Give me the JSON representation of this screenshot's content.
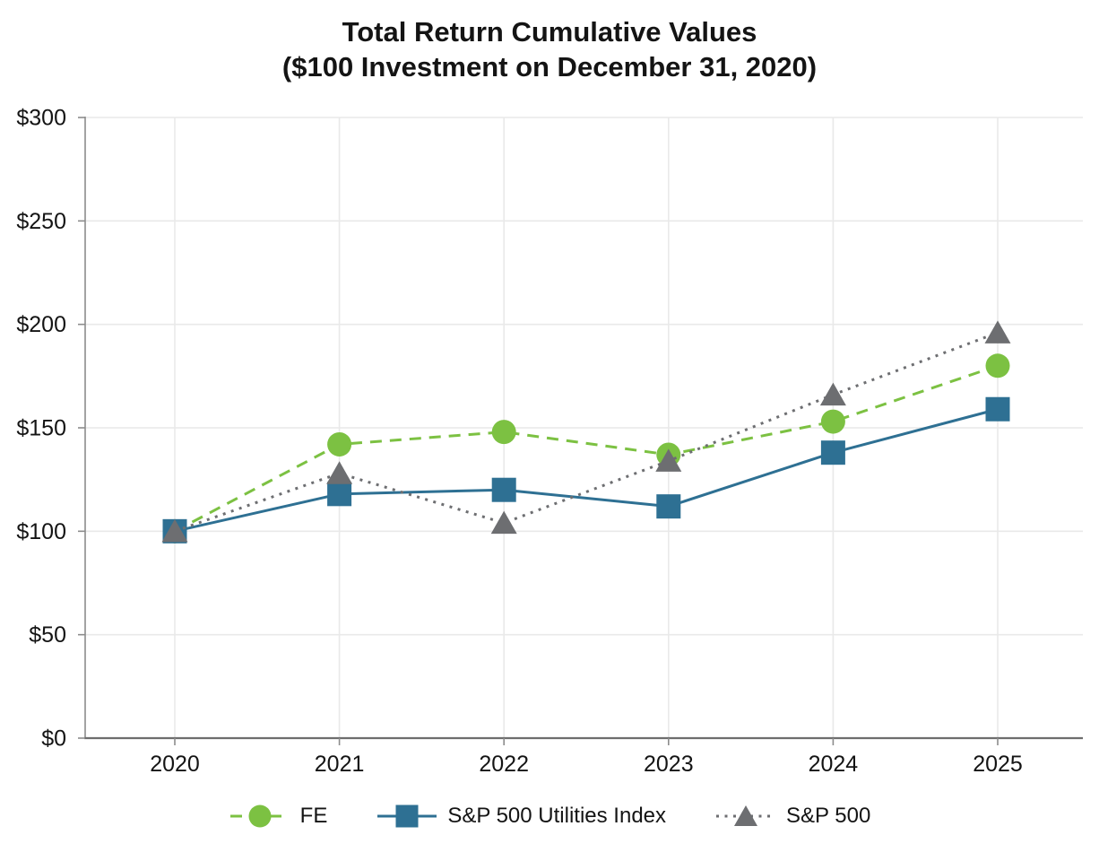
{
  "chart_data": {
    "type": "line",
    "title_line1": "Total Return Cumulative Values",
    "title_line2": "($100 Investment on December 31, 2020)",
    "categories": [
      "2020",
      "2021",
      "2022",
      "2023",
      "2024",
      "2025"
    ],
    "series": [
      {
        "name": "FE",
        "color": "#7CC142",
        "line_style": "dashed",
        "marker": "circle",
        "values": [
          100,
          142,
          148,
          137,
          153,
          180
        ]
      },
      {
        "name": "S&P 500 Utilities Index",
        "color": "#2E7093",
        "line_style": "solid",
        "marker": "square",
        "values": [
          100,
          118,
          120,
          112,
          138,
          159
        ]
      },
      {
        "name": "S&P 500",
        "color": "#6D6E71",
        "line_style": "dotted",
        "marker": "triangle",
        "values": [
          100,
          128,
          104,
          134,
          166,
          196
        ]
      }
    ],
    "ylim": [
      0,
      300
    ],
    "ytick_step": 50,
    "ytick_prefix": "$",
    "xlabel": "",
    "ylabel": "",
    "grid": true,
    "legend_position": "bottom",
    "axis_color": "#6E6E6E",
    "tick_color": "#8C8C8C",
    "grid_color": "#E9E9E9",
    "text_color": "#141414"
  }
}
